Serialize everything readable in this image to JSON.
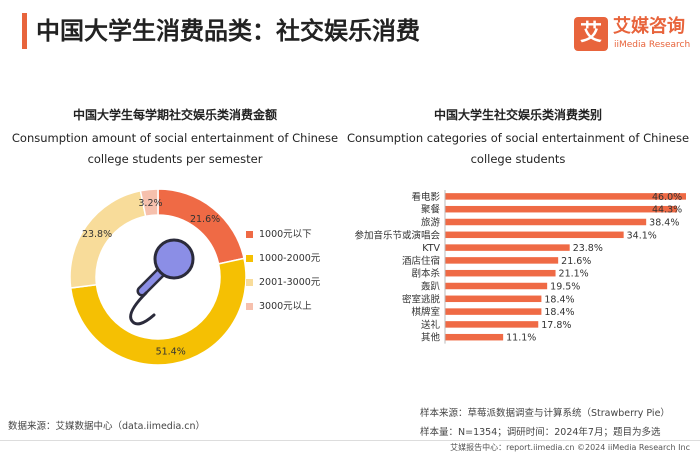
{
  "header": {
    "title": "中国大学生消费品类：社交娱乐消费",
    "logo_mark": "艾",
    "logo_cn": "艾媒咨询",
    "logo_en": "iiMedia Research"
  },
  "chart_data": [
    {
      "type": "pie",
      "title": "中国大学生每学期社交娱乐类消费金额",
      "subtitle": "Consumption amount of social entertainment of Chinese college students per semester",
      "categories": [
        "1000元以下",
        "1000-2000元",
        "2001-3000元",
        "3000元以上"
      ],
      "values": [
        21.6,
        51.4,
        23.8,
        3.2
      ],
      "value_labels": [
        "21.6%",
        "51.4%",
        "23.8%",
        "3.2%"
      ],
      "colors": [
        "#ef6a45",
        "#f5c003",
        "#f8dc9a",
        "#f6c0ad"
      ],
      "legend": "right"
    },
    {
      "type": "bar",
      "orientation": "horizontal",
      "title": "中国大学生社交娱乐类消费类别",
      "subtitle": "Consumption categories of social entertainment of Chinese college students",
      "categories": [
        "看电影",
        "聚餐",
        "旅游",
        "参加音乐节或演唱会",
        "KTV",
        "酒店住宿",
        "剧本杀",
        "轰趴",
        "密室逃脱",
        "棋牌室",
        "送礼",
        "其他"
      ],
      "values": [
        46.0,
        44.3,
        38.4,
        34.1,
        23.8,
        21.6,
        21.1,
        19.5,
        18.4,
        18.4,
        17.8,
        11.1
      ],
      "value_labels": [
        "46.0%",
        "44.3%",
        "38.4%",
        "34.1%",
        "23.8%",
        "21.6%",
        "21.1%",
        "19.5%",
        "18.4%",
        "18.4%",
        "17.8%",
        "11.1%"
      ],
      "color": "#ef6a45",
      "xlim": [
        0,
        46
      ]
    }
  ],
  "source_left": "数据来源：艾媒数据中心（data.iimedia.cn）",
  "notes": {
    "line1": "样本来源：草莓派数据调查与计算系统（Strawberry Pie）",
    "line2": "样本量：N=1354；调研时间：2024年7月；题目为多选"
  },
  "footer": "艾媒报告中心：report.iimedia.cn  ©2024  iiMedia Research  Inc",
  "icon": "microphone-icon"
}
